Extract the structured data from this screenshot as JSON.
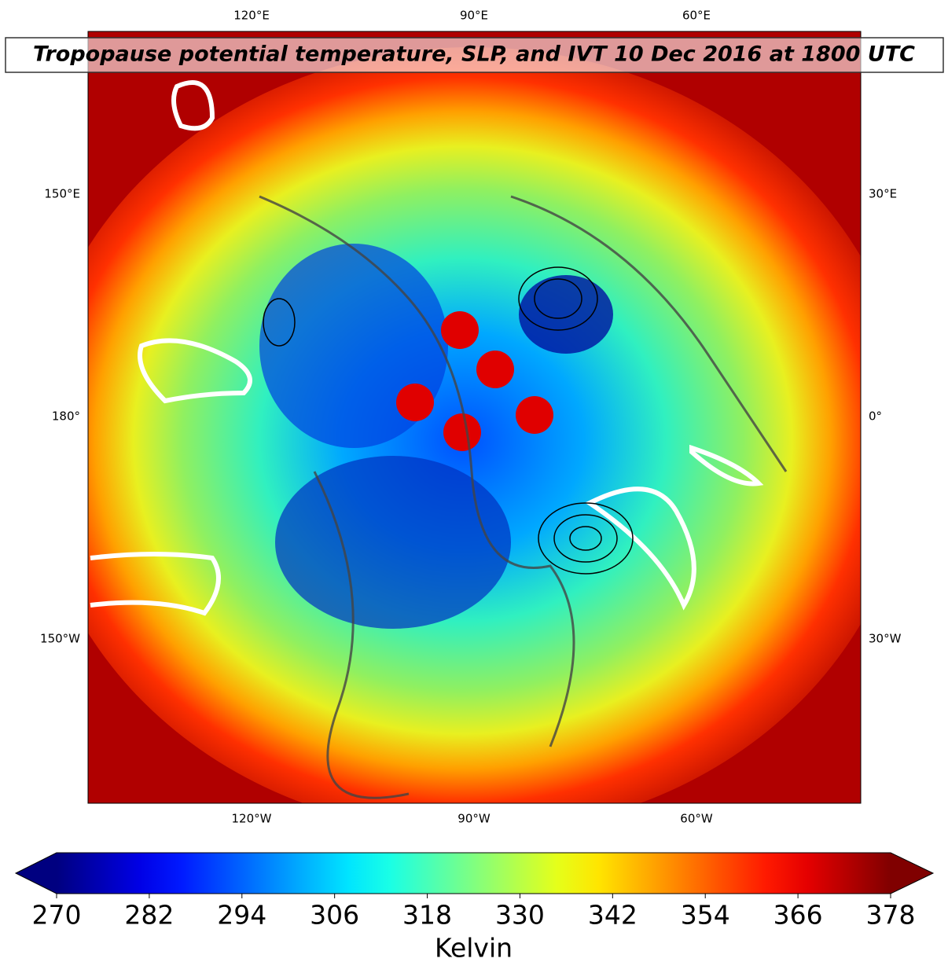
{
  "title": "Tropopause potential temperature, SLP, and IVT 10 Dec 2016 at 1800 UTC",
  "map": {
    "top_labels": [
      "120°E",
      "90°E",
      "60°E"
    ],
    "bottom_labels": [
      "120°W",
      "90°W",
      "60°W"
    ],
    "left_labels": [
      "150°E",
      "180°",
      "150°W"
    ],
    "right_labels": [
      "30°E",
      "0°",
      "30°W"
    ]
  },
  "colorbar": {
    "label": "Kelvin",
    "range": [
      270,
      378
    ],
    "ticks": [
      270,
      282,
      294,
      306,
      318,
      330,
      342,
      354,
      366,
      378
    ],
    "colormap": "jet",
    "extend": "both"
  }
}
